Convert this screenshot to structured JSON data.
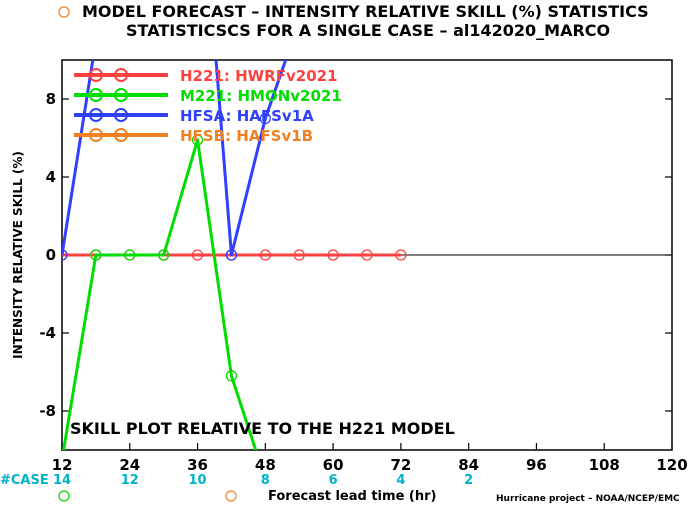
{
  "chart_data": {
    "type": "line",
    "title": "MODEL FORECAST – INTENSITY RELATIVE SKILL (%) STATISTICS",
    "subtitle": "STATISTICSCS FOR A SINGLE CASE – al142020_MARCO",
    "xlabel": "Forecast lead time (hr)",
    "ylabel": "INTENSITY RELATIVE SKILL (%)",
    "xlim": [
      12,
      120
    ],
    "ylim": [
      -10,
      10
    ],
    "x_ticks": [
      12,
      24,
      36,
      48,
      60,
      72,
      84,
      96,
      108,
      120
    ],
    "y_ticks": [
      -8,
      -4,
      0,
      4,
      8
    ],
    "x": [
      12,
      18,
      24,
      30,
      36,
      42,
      48,
      54,
      60,
      66,
      72
    ],
    "series": [
      {
        "name": "H221: HWRFv2021",
        "color": "#ff4040",
        "values": [
          0,
          0,
          0,
          0,
          0,
          0,
          0,
          0,
          0,
          0,
          0
        ]
      },
      {
        "name": "M221: HMONv2021",
        "color": "#00dd00",
        "values": [
          -10.5,
          0,
          0,
          0,
          5.9,
          -6.2,
          -11.5,
          null,
          null,
          null,
          null
        ]
      },
      {
        "name": "HFSA: HAFSv1A",
        "color": "#3040ff",
        "values": [
          0,
          11,
          null,
          null,
          22,
          0,
          7,
          12,
          null,
          null,
          null
        ]
      },
      {
        "name": "HFSB: HAFSv1B",
        "color": "#f08020",
        "values": [
          null,
          null,
          null,
          null,
          null,
          null,
          null,
          null,
          null,
          null,
          null
        ]
      }
    ],
    "case_label": "#CASE",
    "case_counts": [
      {
        "x": 12,
        "count": "14"
      },
      {
        "x": 24,
        "count": "12"
      },
      {
        "x": 36,
        "count": "10"
      },
      {
        "x": 48,
        "count": "8"
      },
      {
        "x": 60,
        "count": "6"
      },
      {
        "x": 72,
        "count": "4"
      },
      {
        "x": 84,
        "count": "2"
      }
    ],
    "annotation": "SKILL PLOT RELATIVE TO THE H221 MODEL",
    "credit": "Hurricane project – NOAA/NCEP/EMC",
    "grid": false,
    "legend_position": "top-left"
  }
}
